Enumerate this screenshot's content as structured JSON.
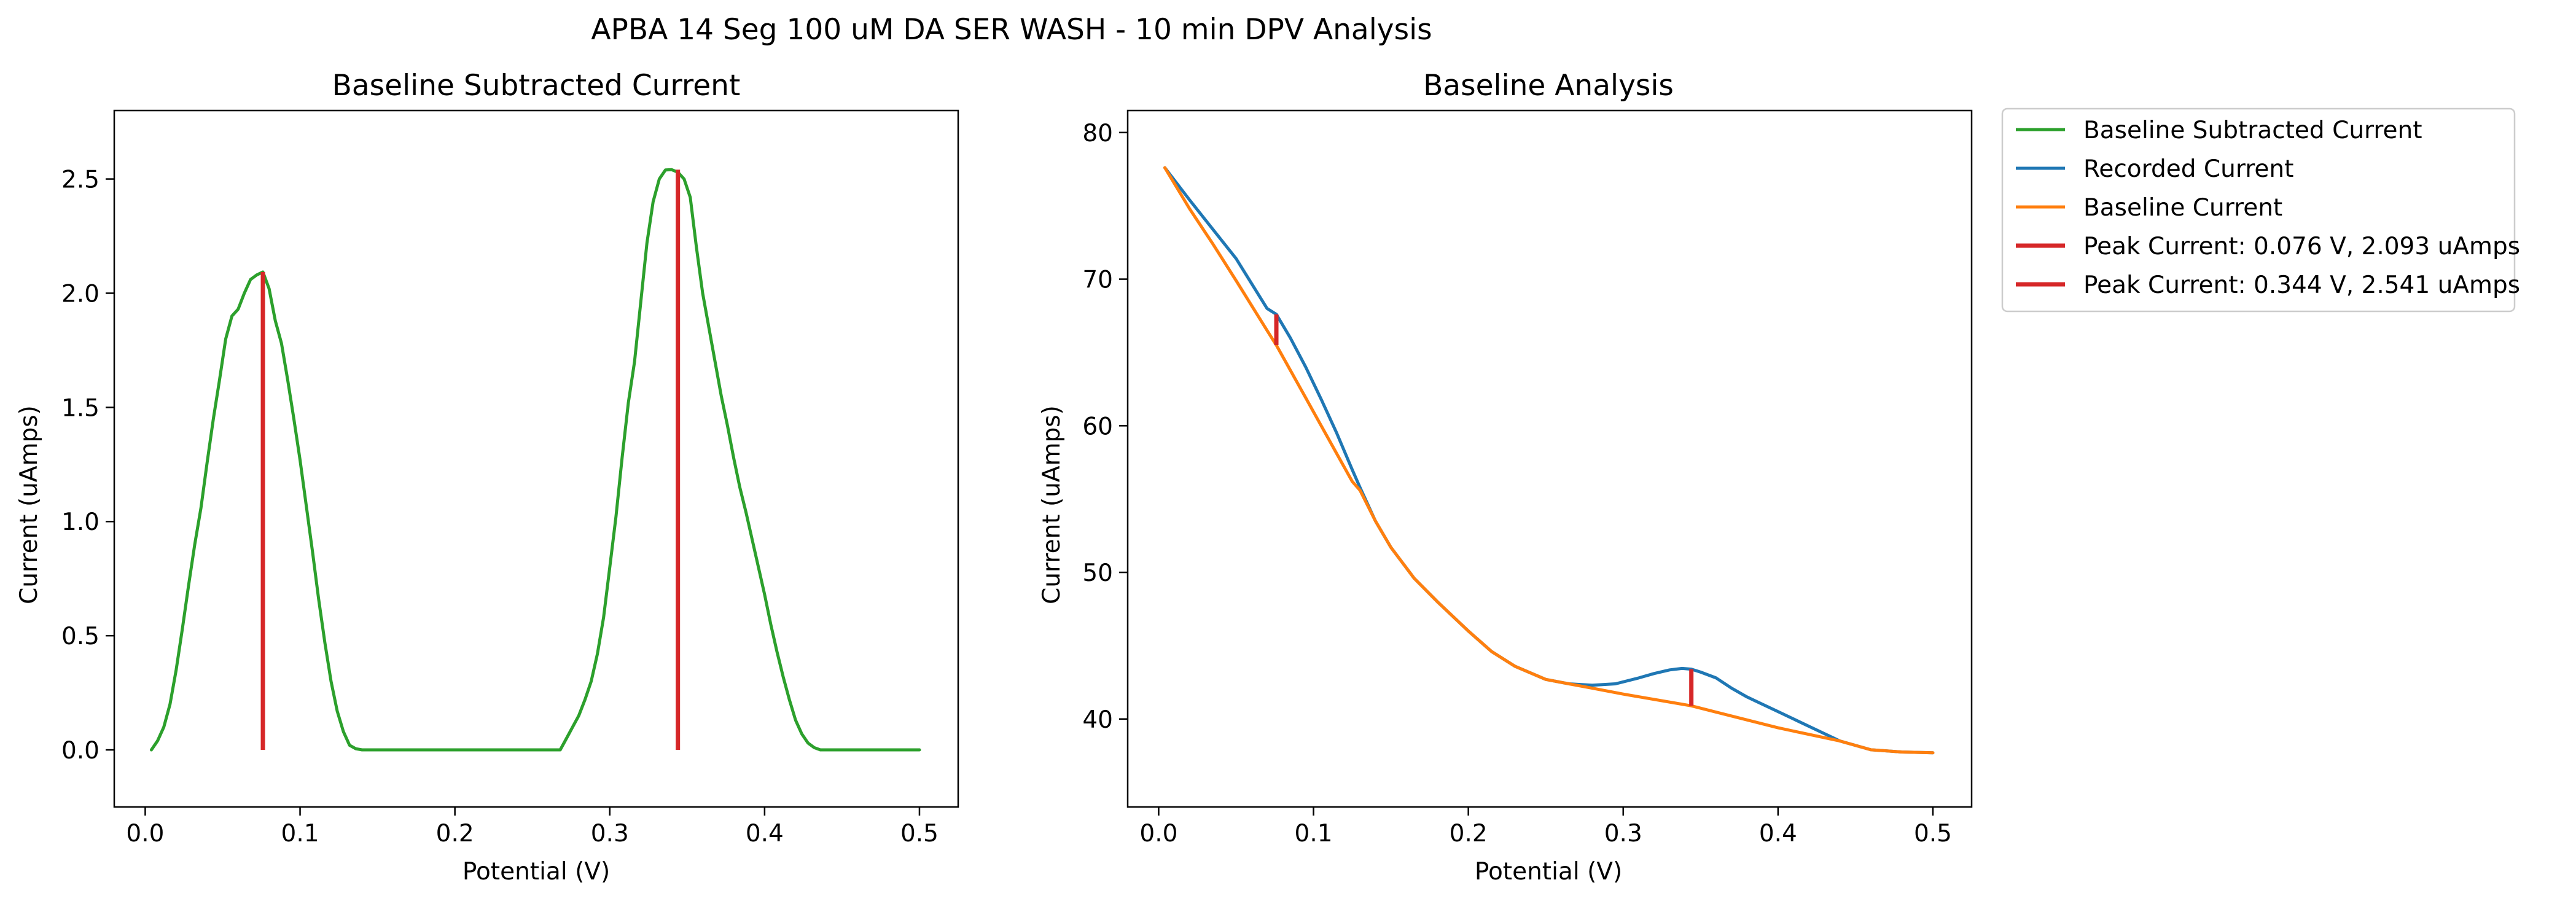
{
  "figure": {
    "title": "APBA 14 Seg 100 uM DA SER WASH - 10 min DPV Analysis"
  },
  "chart_data": [
    {
      "type": "line",
      "title": "Baseline Subtracted Current",
      "xlabel": "Potential (V)",
      "ylabel": "Current (uAmps)",
      "xlim": [
        -0.02,
        0.525
      ],
      "ylim": [
        -0.25,
        2.8
      ],
      "xticks": [
        "0.0",
        "0.1",
        "0.2",
        "0.3",
        "0.4",
        "0.5"
      ],
      "yticks": [
        "0.0",
        "0.5",
        "1.0",
        "1.5",
        "2.0",
        "2.5"
      ],
      "grid": false,
      "series": [
        {
          "name": "Baseline Subtracted Current",
          "color": "#2ca02c",
          "x": [
            0.004,
            0.008,
            0.012,
            0.016,
            0.02,
            0.024,
            0.028,
            0.032,
            0.036,
            0.04,
            0.044,
            0.048,
            0.052,
            0.056,
            0.06,
            0.064,
            0.068,
            0.072,
            0.076,
            0.08,
            0.084,
            0.088,
            0.092,
            0.096,
            0.1,
            0.104,
            0.108,
            0.112,
            0.116,
            0.12,
            0.124,
            0.128,
            0.132,
            0.136,
            0.14,
            0.144,
            0.15,
            0.2,
            0.25,
            0.268,
            0.272,
            0.276,
            0.28,
            0.284,
            0.288,
            0.292,
            0.296,
            0.3,
            0.304,
            0.308,
            0.312,
            0.316,
            0.32,
            0.324,
            0.328,
            0.332,
            0.336,
            0.34,
            0.344,
            0.348,
            0.352,
            0.356,
            0.36,
            0.364,
            0.368,
            0.372,
            0.376,
            0.38,
            0.384,
            0.388,
            0.392,
            0.396,
            0.4,
            0.404,
            0.408,
            0.412,
            0.416,
            0.42,
            0.424,
            0.428,
            0.432,
            0.436,
            0.44,
            0.444,
            0.448,
            0.452,
            0.456,
            0.46,
            0.47,
            0.5
          ],
          "values": [
            0.0,
            0.04,
            0.1,
            0.2,
            0.35,
            0.53,
            0.72,
            0.9,
            1.06,
            1.26,
            1.45,
            1.62,
            1.8,
            1.9,
            1.93,
            2.0,
            2.06,
            2.08,
            2.093,
            2.02,
            1.88,
            1.78,
            1.62,
            1.45,
            1.27,
            1.07,
            0.87,
            0.66,
            0.47,
            0.3,
            0.17,
            0.08,
            0.02,
            0.005,
            0.0,
            0.0,
            0.0,
            0.0,
            0.0,
            0.0,
            0.05,
            0.1,
            0.15,
            0.22,
            0.3,
            0.42,
            0.58,
            0.8,
            1.02,
            1.28,
            1.52,
            1.7,
            1.96,
            2.22,
            2.4,
            2.5,
            2.54,
            2.541,
            2.53,
            2.5,
            2.42,
            2.2,
            2.0,
            1.85,
            1.7,
            1.55,
            1.42,
            1.28,
            1.15,
            1.04,
            0.92,
            0.8,
            0.68,
            0.55,
            0.43,
            0.32,
            0.22,
            0.13,
            0.07,
            0.03,
            0.01,
            0.0,
            0.0,
            0.0,
            0.0,
            0.0,
            0.0,
            0.0,
            0.0,
            0.0
          ]
        }
      ],
      "vlines": [
        {
          "name": "Peak Current: 0.076 V, 2.093 uAmps",
          "color": "#d62728",
          "x": 0.076,
          "y0": 0.0,
          "y1": 2.093
        },
        {
          "name": "Peak Current: 0.344 V, 2.541 uAmps",
          "color": "#d62728",
          "x": 0.344,
          "y0": 0.0,
          "y1": 2.541
        }
      ]
    },
    {
      "type": "line",
      "title": "Baseline Analysis",
      "xlabel": "Potential (V)",
      "ylabel": "Current (uAmps)",
      "xlim": [
        -0.02,
        0.525
      ],
      "ylim": [
        34,
        81.5
      ],
      "xticks": [
        "0.0",
        "0.1",
        "0.2",
        "0.3",
        "0.4",
        "0.5"
      ],
      "yticks": [
        "40",
        "50",
        "60",
        "70",
        "80"
      ],
      "grid": false,
      "legend": "outside-upper-right",
      "series": [
        {
          "name": "Recorded Current",
          "color": "#1f77b4",
          "x": [
            0.004,
            0.02,
            0.035,
            0.05,
            0.06,
            0.07,
            0.076,
            0.085,
            0.095,
            0.105,
            0.115,
            0.125,
            0.13,
            0.14,
            0.15,
            0.165,
            0.18,
            0.2,
            0.215,
            0.23,
            0.25,
            0.265,
            0.28,
            0.295,
            0.31,
            0.32,
            0.33,
            0.338,
            0.344,
            0.35,
            0.36,
            0.37,
            0.38,
            0.39,
            0.4,
            0.42,
            0.44,
            0.46,
            0.48,
            0.5
          ],
          "values": [
            77.6,
            75.4,
            73.4,
            71.4,
            69.7,
            68.0,
            67.6,
            66.0,
            64.0,
            61.8,
            59.5,
            57.0,
            55.8,
            53.5,
            51.7,
            49.6,
            48.0,
            46.0,
            44.6,
            43.6,
            42.7,
            42.4,
            42.3,
            42.4,
            42.8,
            43.1,
            43.35,
            43.45,
            43.4,
            43.2,
            42.8,
            42.1,
            41.5,
            41.0,
            40.5,
            39.5,
            38.5,
            37.9,
            37.75,
            37.7
          ]
        },
        {
          "name": "Baseline Current",
          "color": "#ff7f0e",
          "x": [
            0.004,
            0.02,
            0.035,
            0.05,
            0.06,
            0.07,
            0.076,
            0.085,
            0.095,
            0.105,
            0.115,
            0.125,
            0.13,
            0.14,
            0.15,
            0.165,
            0.18,
            0.2,
            0.215,
            0.23,
            0.25,
            0.265,
            0.28,
            0.3,
            0.344,
            0.4,
            0.44,
            0.46,
            0.48,
            0.5
          ],
          "values": [
            77.6,
            74.8,
            72.4,
            69.9,
            68.2,
            66.5,
            65.5,
            63.8,
            61.9,
            60.0,
            58.1,
            56.2,
            55.6,
            53.5,
            51.7,
            49.6,
            48.0,
            46.0,
            44.6,
            43.6,
            42.7,
            42.4,
            42.1,
            41.7,
            40.9,
            39.4,
            38.5,
            37.9,
            37.75,
            37.7
          ]
        }
      ],
      "vlines": [
        {
          "name": "Peak Current: 0.076 V, 2.093 uAmps",
          "color": "#d62728",
          "x": 0.076,
          "y0": 65.5,
          "y1": 67.6
        },
        {
          "name": "Peak Current: 0.344 V, 2.541 uAmps",
          "color": "#d62728",
          "x": 0.344,
          "y0": 40.9,
          "y1": 43.4
        }
      ]
    }
  ],
  "legend": {
    "items": [
      {
        "label": "Baseline Subtracted Current",
        "color": "#2ca02c"
      },
      {
        "label": "Recorded Current",
        "color": "#1f77b4"
      },
      {
        "label": "Baseline Current",
        "color": "#ff7f0e"
      },
      {
        "label": "Peak Current: 0.076 V, 2.093 uAmps",
        "color": "#d62728"
      },
      {
        "label": "Peak Current: 0.344 V, 2.541 uAmps",
        "color": "#d62728"
      }
    ]
  }
}
